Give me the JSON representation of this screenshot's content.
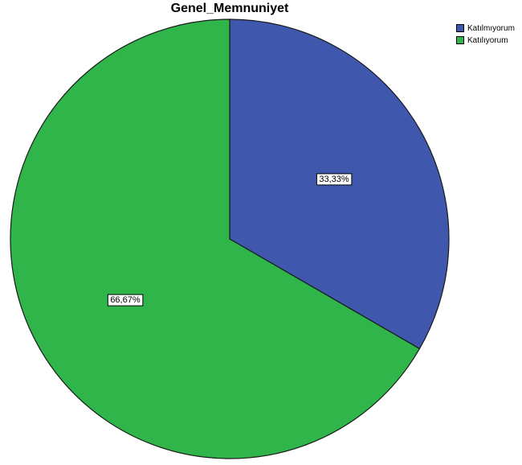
{
  "chart_data": {
    "type": "pie",
    "title": "Genel_Memnuniyet",
    "categories": [
      "Katılmıyorum",
      "Katılıyorum"
    ],
    "values": [
      33.33,
      66.67
    ],
    "labels": [
      "33,33%",
      "66,67%"
    ],
    "colors": [
      "#3f58ae",
      "#2fb54a"
    ],
    "legend_position": "top-right",
    "start_angle_deg": 0,
    "direction": "clockwise"
  }
}
